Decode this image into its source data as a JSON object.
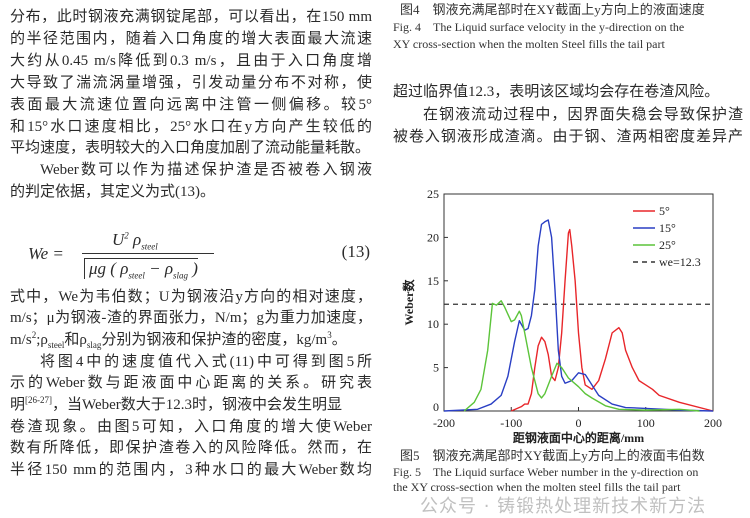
{
  "left_column": {
    "lines_top": [
      "分布，此时钢液充满钢锭尾部，可以看出，在150 mm",
      "的半径范围内，随着入口角度的增大表面最大流速",
      "大约从0.45 m/s降低到0.3 m/s，且由于入口角度增",
      "大导致了湍流涡量增强，引发动量分布不对称，使",
      "表面最大流速位置向远离中注管一侧偏移。较5°",
      "和15°水口速度相比，25°水口在y方向产生较低的",
      "平均速度，表明较大的入口角度加剧了流动能量耗散。",
      "Weber数可以作为描述保护渣是否被卷入钢液",
      "的判定依据，其定义为式(13)。"
    ],
    "formula": {
      "lhs": "We =",
      "numerator": "U",
      "num_sup": "2",
      "num_rho": "ρ",
      "num_sub": "steel",
      "denominator": "μg ( ρ",
      "den_sub1": "steel",
      "den_mid": " − ρ",
      "den_sub2": "slag",
      "den_end": " )",
      "number": "(13)"
    },
    "lines_bottom": [
      "式中，We为韦伯数；U为钢液沿y方向的相对速度，",
      "m/s；μ为钢液-渣的界面张力，N/m；g为重力加速度，",
      "",
      "将图4中的速度值代入式(11)中可得到图5所",
      "示的Weber数与距液面中心距离的关系。研究表",
      "",
      "卷渣现象。由图5可知，入口角度的增大使Weber",
      "数有所降低，即保护渣卷入的风险降低。然而，在",
      "半径150 mm的范围内，3种水口的最大Weber数均"
    ],
    "line_density": {
      "a": "m/s",
      "a_sup": "2",
      "b": ";ρ",
      "b_sub": "steel",
      "c": "和ρ",
      "c_sub": "slag",
      "d": "分别为钢液和保护渣的密度，kg/m",
      "d_sup": "3",
      "e": "。"
    },
    "line_ref": {
      "a": "明",
      "a_sup": "[26-27]",
      "b": "，当Weber数大于12.3时，钢液中会发生明显"
    }
  },
  "right_column": {
    "fig4_caption_zh": "图4　钢液充满尾部时在XY截面上y方向上的液面速度",
    "fig4_caption_en1": "Fig. 4　The Liquid surface velocity in the y-direction on the",
    "fig4_caption_en2": "XY cross-section when the molten Steel fills the tail part",
    "lines": [
      "超过临界值12.3，表明该区域均会存在卷渣风险。",
      "在钢液流动过程中，因界面失稳会导致保护渣",
      "被卷入钢液形成渣滴。由于钢、渣两相密度差异产"
    ],
    "fig5_caption_zh": "图5　钢液充满尾部时XY截面上y方向上的液面韦伯数",
    "fig5_caption_en1": "Fig. 5　The Liquid surface Weber number in the y-direction on",
    "fig5_caption_en2": "the XY cross-section when the molten steel fills the tail part"
  },
  "watermark": "公众号 · 铸锻热处理新技术新方法",
  "chart_data": {
    "type": "line",
    "xlabel": "距钢液面中心的距离/mm",
    "ylabel": "Weber数",
    "xlim": [
      -200,
      200
    ],
    "ylim": [
      0,
      25
    ],
    "xticks": [
      "-200",
      "-100",
      "0",
      "100",
      "200"
    ],
    "yticks": [
      "0",
      "5",
      "10",
      "15",
      "20",
      "25"
    ],
    "legend_position": "top-right",
    "series": [
      {
        "name": "5°",
        "color": "#e8262a",
        "points": [
          [
            -100,
            0
          ],
          [
            -85,
            0.5
          ],
          [
            -80,
            0.8
          ],
          [
            -75,
            0.8
          ],
          [
            -70,
            2
          ],
          [
            -65,
            5
          ],
          [
            -60,
            7.5
          ],
          [
            -55,
            8.5
          ],
          [
            -50,
            8
          ],
          [
            -45,
            6.5
          ],
          [
            -40,
            4
          ],
          [
            -35,
            3.5
          ],
          [
            -30,
            5
          ],
          [
            -25,
            9
          ],
          [
            -20,
            15
          ],
          [
            -15,
            20.5
          ],
          [
            -13,
            20.9
          ],
          [
            -10,
            19
          ],
          [
            -5,
            15
          ],
          [
            0,
            9
          ],
          [
            5,
            5
          ],
          [
            10,
            3
          ],
          [
            20,
            2.5
          ],
          [
            30,
            3.5
          ],
          [
            40,
            6
          ],
          [
            50,
            9
          ],
          [
            60,
            9.6
          ],
          [
            65,
            9
          ],
          [
            70,
            7
          ],
          [
            80,
            5
          ],
          [
            90,
            3.5
          ],
          [
            100,
            3
          ],
          [
            110,
            2.5
          ],
          [
            120,
            1.8
          ],
          [
            150,
            1
          ],
          [
            200,
            0
          ]
        ]
      },
      {
        "name": "15°",
        "color": "#2a3fc4",
        "points": [
          [
            -200,
            0
          ],
          [
            -150,
            0.2
          ],
          [
            -130,
            0.8
          ],
          [
            -115,
            1.8
          ],
          [
            -105,
            4
          ],
          [
            -95,
            8
          ],
          [
            -88,
            10.4
          ],
          [
            -80,
            9.3
          ],
          [
            -75,
            9.5
          ],
          [
            -70,
            11
          ],
          [
            -65,
            14
          ],
          [
            -60,
            19
          ],
          [
            -55,
            21.5
          ],
          [
            -50,
            21.8
          ],
          [
            -45,
            22
          ],
          [
            -40,
            20
          ],
          [
            -35,
            14
          ],
          [
            -30,
            7
          ],
          [
            -25,
            4
          ],
          [
            -20,
            3.2
          ],
          [
            -10,
            3.5
          ],
          [
            0,
            4.4
          ],
          [
            10,
            4.2
          ],
          [
            20,
            3
          ],
          [
            30,
            1.8
          ],
          [
            50,
            0.8
          ],
          [
            70,
            0.4
          ],
          [
            100,
            0.3
          ],
          [
            150,
            0.1
          ],
          [
            200,
            0
          ]
        ]
      },
      {
        "name": "25°",
        "color": "#5cc43a",
        "points": [
          [
            -170,
            0
          ],
          [
            -155,
            1
          ],
          [
            -145,
            2.5
          ],
          [
            -135,
            7
          ],
          [
            -128,
            12.4
          ],
          [
            -122,
            12.2
          ],
          [
            -115,
            12.7
          ],
          [
            -110,
            12
          ],
          [
            -100,
            10.3
          ],
          [
            -95,
            10.5
          ],
          [
            -88,
            11.5
          ],
          [
            -85,
            11
          ],
          [
            -80,
            9
          ],
          [
            -70,
            5
          ],
          [
            -60,
            2
          ],
          [
            -55,
            1.5
          ],
          [
            -50,
            2
          ],
          [
            -40,
            4
          ],
          [
            -32,
            5.5
          ],
          [
            -25,
            5
          ],
          [
            -15,
            3.8
          ],
          [
            0,
            2.8
          ],
          [
            10,
            2
          ],
          [
            20,
            1.5
          ],
          [
            40,
            0.6
          ],
          [
            60,
            0.2
          ],
          [
            100,
            0.1
          ],
          [
            150,
            0.2
          ],
          [
            180,
            0
          ]
        ]
      }
    ],
    "reference_line": {
      "name": "we=12.3",
      "y": 12.3,
      "color": "#333333",
      "style": "dashed"
    }
  }
}
